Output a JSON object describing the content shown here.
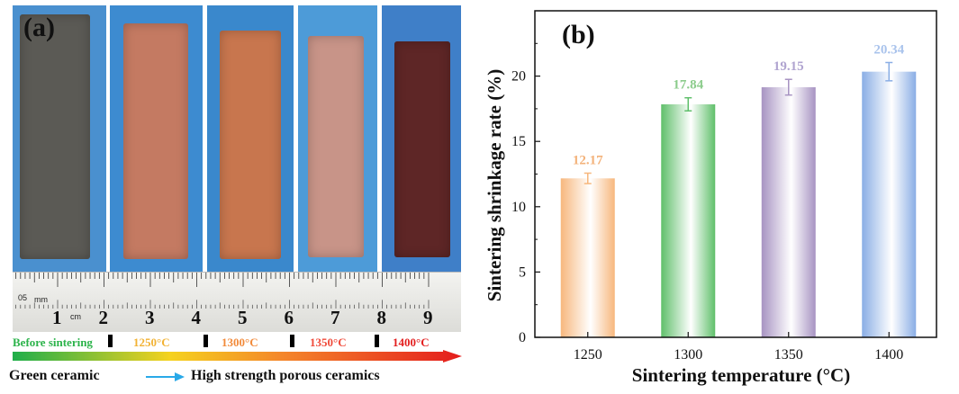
{
  "panel_a": {
    "label": "(a)",
    "ruler_numbers": [
      "1",
      "2",
      "3",
      "4",
      "5",
      "6",
      "7",
      "8",
      "9"
    ],
    "ruler_unit_cm": "cm",
    "ruler_unit_mm_prefix": "05",
    "ruler_unit_mm": "mm",
    "stages": [
      {
        "label": "Before sintering",
        "color": "#2bb34a"
      },
      {
        "label": "1250°C",
        "color": "#f2b233"
      },
      {
        "label": "1300°C",
        "color": "#f28a3a"
      },
      {
        "label": "1350°C",
        "color": "#f04a3a"
      },
      {
        "label": "1400°C",
        "color": "#e31e1e"
      }
    ],
    "caption_left": "Green ceramic",
    "caption_right": "High strength porous  ceramics",
    "sample_colors": {
      "backgrounds": [
        "#4a90cf",
        "#3d8bd0",
        "#3a88cc",
        "#4d9bd8",
        "#3f7fc8"
      ],
      "samples": [
        "#5b5a55",
        "#c47a62",
        "#c8764e",
        "#c89488",
        "#5e2626"
      ]
    },
    "arrow_icon": "arrow-right-icon"
  },
  "chart_data": {
    "type": "bar",
    "label": "(b)",
    "categories": [
      "1250",
      "1300",
      "1350",
      "1400"
    ],
    "values": [
      12.17,
      17.84,
      19.15,
      20.34
    ],
    "value_labels": [
      "12.17",
      "17.84",
      "19.15",
      "20.34"
    ],
    "errors": [
      0.4,
      0.5,
      0.6,
      0.7
    ],
    "colors": [
      "#f7b77d",
      "#5fbf6a",
      "#a793c2",
      "#8aaee5"
    ],
    "label_colors": [
      "#f3b27a",
      "#8ccc8c",
      "#b0a4d0",
      "#a9c3ec"
    ],
    "ylim": [
      0,
      25
    ],
    "yticks": [
      "0",
      "5",
      "10",
      "15",
      "20"
    ],
    "xlabel": "Sintering temperature (°C)",
    "ylabel": "Sintering shrinkage rate (%)",
    "grid": false
  }
}
